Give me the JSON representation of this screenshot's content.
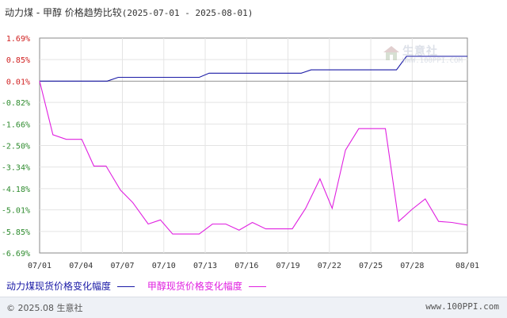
{
  "chart_data": {
    "type": "line",
    "title_main": "动力煤 - 甲醇 价格趋势比较",
    "title_range": "(2025-07-01 - 2025-08-01)",
    "x": [
      "07/01",
      "07/02",
      "07/03",
      "07/04",
      "07/05",
      "07/06",
      "07/07",
      "07/08",
      "07/09",
      "07/10",
      "07/11",
      "07/12",
      "07/13",
      "07/14",
      "07/15",
      "07/16",
      "07/17",
      "07/18",
      "07/19",
      "07/20",
      "07/21",
      "07/22",
      "07/23",
      "07/24",
      "07/25",
      "07/26",
      "07/27",
      "07/28",
      "07/29",
      "07/30",
      "07/31",
      "08/01"
    ],
    "x_tick_labels": [
      "07/01",
      "07/04",
      "07/07",
      "07/10",
      "07/13",
      "07/16",
      "07/19",
      "07/22",
      "07/25",
      "07/28",
      "08/01"
    ],
    "x_tick_indices": [
      0,
      3,
      6,
      9,
      12,
      15,
      18,
      21,
      24,
      27,
      31
    ],
    "y_tick_labels": [
      "1.69%",
      "0.85%",
      "0.01%",
      "-0.82%",
      "-1.66%",
      "-2.50%",
      "-3.34%",
      "-4.18%",
      "-5.01%",
      "-5.85%",
      "-6.69%"
    ],
    "y_ticks": [
      1.69,
      0.85,
      0.01,
      -0.82,
      -1.66,
      -2.5,
      -3.34,
      -4.18,
      -5.01,
      -5.85,
      -6.69
    ],
    "ylim": [
      -6.69,
      1.69
    ],
    "zero_line": 0.01,
    "series": [
      {
        "name": "动力煤现货价格变化幅度",
        "color": "#1a1aa6",
        "values": [
          0.01,
          0.01,
          0.01,
          0.01,
          0.01,
          0.01,
          0.06,
          0.06,
          0.06,
          0.06,
          0.06,
          0.06,
          0.12,
          0.12,
          0.12,
          0.12,
          0.12,
          0.12,
          0.12,
          0.12,
          0.18,
          0.18,
          0.18,
          0.18,
          0.18,
          0.18,
          0.18,
          0.98,
          0.98,
          0.98,
          0.98,
          0.98
        ],
        "points": [
          [
            0,
            0.01
          ],
          [
            6.1,
            0.01
          ],
          [
            7.1,
            0.16
          ],
          [
            14.4,
            0.16
          ],
          [
            15.3,
            0.32
          ],
          [
            23.6,
            0.32
          ],
          [
            24.5,
            0.45
          ],
          [
            32.2,
            0.45
          ],
          [
            33.1,
            0.98
          ],
          [
            38.6,
            0.98
          ]
        ]
      },
      {
        "name": "甲醇现货价格变化幅度",
        "color": "#e020e0",
        "points": [
          [
            0,
            0.01
          ],
          [
            1.2,
            -2.08
          ],
          [
            2.4,
            -2.26
          ],
          [
            3.8,
            -2.26
          ],
          [
            4.9,
            -3.3
          ],
          [
            6.0,
            -3.3
          ],
          [
            7.3,
            -4.24
          ],
          [
            8.4,
            -4.72
          ],
          [
            9.8,
            -5.56
          ],
          [
            10.9,
            -5.4
          ],
          [
            12.0,
            -5.95
          ],
          [
            13.2,
            -5.95
          ],
          [
            14.4,
            -5.95
          ],
          [
            15.6,
            -5.56
          ],
          [
            16.8,
            -5.56
          ],
          [
            18.0,
            -5.8
          ],
          [
            19.2,
            -5.5
          ],
          [
            20.4,
            -5.75
          ],
          [
            21.6,
            -5.75
          ],
          [
            22.8,
            -5.75
          ],
          [
            24.0,
            -4.95
          ],
          [
            25.3,
            -3.8
          ],
          [
            26.4,
            -4.95
          ],
          [
            27.6,
            -2.68
          ],
          [
            28.8,
            -1.84
          ],
          [
            30.0,
            -1.84
          ],
          [
            31.2,
            -1.84
          ],
          [
            32.4,
            -5.46
          ],
          [
            33.6,
            -4.99
          ],
          [
            34.8,
            -4.58
          ],
          [
            36.0,
            -5.46
          ],
          [
            37.2,
            -5.5
          ],
          [
            38.6,
            -5.6
          ]
        ]
      }
    ]
  },
  "legend": {
    "coal_label": "动力煤现货价格变化幅度",
    "methanol_label": "甲醇现货价格变化幅度"
  },
  "footer": {
    "copyright": "© 2025.08 生意社",
    "url": "www.100PPI.com"
  },
  "watermark": {
    "brand": "生意社",
    "url": "WWW.100PPI.COM"
  }
}
